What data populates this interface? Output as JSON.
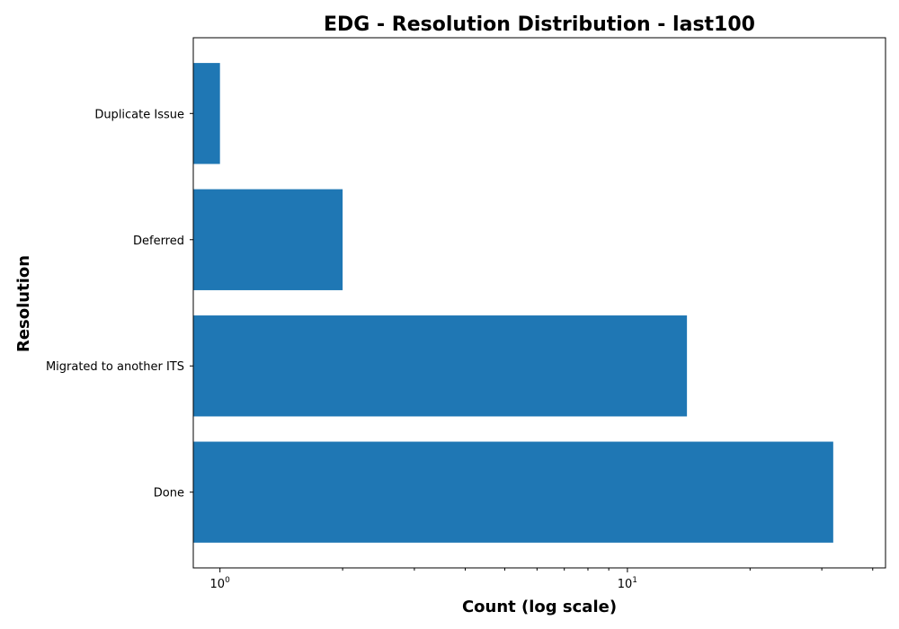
{
  "chart_data": {
    "type": "bar",
    "orientation": "horizontal",
    "title": "EDG - Resolution Distribution - last100",
    "xlabel": "Count (log scale)",
    "ylabel": "Resolution",
    "x_scale": "log",
    "xlim": [
      0.86,
      43
    ],
    "x_ticks": [
      {
        "value": 1,
        "base": "10",
        "exp": "0"
      },
      {
        "value": 10,
        "base": "10",
        "exp": "1"
      }
    ],
    "categories": [
      "Duplicate Issue",
      "Deferred",
      "Migrated to another ITS",
      "Done"
    ],
    "values": [
      1,
      2,
      14,
      32
    ],
    "bar_color": "#1f77b4",
    "grid": false
  }
}
